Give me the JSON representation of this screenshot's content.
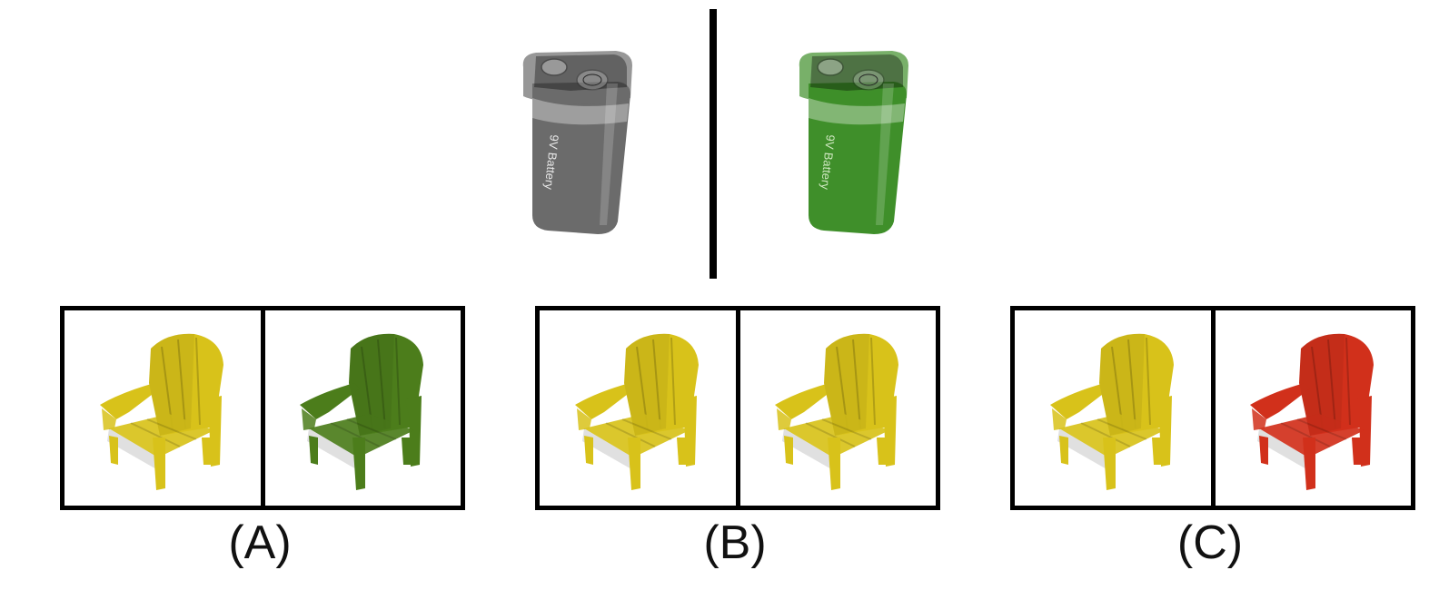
{
  "example": {
    "left_item": {
      "object": "9V battery",
      "color": "gray",
      "hex": "#6b6b6b",
      "icon": "battery-icon"
    },
    "right_item": {
      "object": "9V battery",
      "color": "green",
      "hex": "#3f8f2a",
      "icon": "battery-icon"
    },
    "battery_text": "9V Battery"
  },
  "options": [
    {
      "label": "(A)",
      "left_chair": {
        "color": "yellow",
        "hex": "#d8c21a",
        "icon": "chair-icon"
      },
      "right_chair": {
        "color": "green",
        "hex": "#4c7d1b",
        "icon": "chair-icon"
      }
    },
    {
      "label": "(B)",
      "left_chair": {
        "color": "yellow",
        "hex": "#d8c21a",
        "icon": "chair-icon"
      },
      "right_chair": {
        "color": "yellow",
        "hex": "#d8c21a",
        "icon": "chair-icon"
      }
    },
    {
      "label": "(C)",
      "left_chair": {
        "color": "yellow",
        "hex": "#d8c21a",
        "icon": "chair-icon"
      },
      "right_chair": {
        "color": "red",
        "hex": "#d1301b",
        "icon": "chair-icon"
      }
    }
  ]
}
